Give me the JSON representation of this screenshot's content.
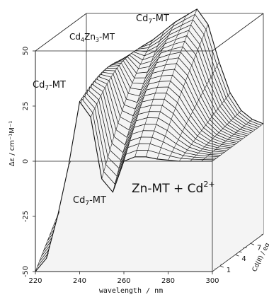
{
  "chart_data": {
    "type": "surface",
    "title": "",
    "xlabel": "wavelength / nm",
    "ylabel": "Δε / cm⁻¹M⁻¹",
    "zlabel": "Cd(II) / eq",
    "xlim": [
      220,
      300
    ],
    "ylim": [
      -50,
      50
    ],
    "x_ticks": [
      "220",
      "240",
      "260",
      "280",
      "300"
    ],
    "y_ticks": [
      "-50",
      "-25",
      "0",
      "25",
      "50"
    ],
    "depth_ticks": [
      "1",
      "4",
      "7"
    ],
    "grid": false,
    "main_label": "Zn-MT + Cd",
    "main_label_sup": "2+",
    "annotations": [
      {
        "text": "Cd",
        "sub": "7",
        "tail": "-MT",
        "near": "front peak"
      },
      {
        "text": "Cd",
        "sub": "7",
        "tail": "-MT",
        "near": "front trough"
      },
      {
        "text": "Cd",
        "sub": "4",
        "mid": "Zn",
        "sub2": "3",
        "tail": "-MT",
        "near": "back shoulder"
      },
      {
        "text": "Cd",
        "sub": "7",
        "tail": "-MT",
        "near": "back peak"
      }
    ],
    "x": [
      220,
      225,
      230,
      235,
      240,
      245,
      250,
      255,
      260,
      265,
      270,
      275,
      280,
      285,
      290,
      295,
      300
    ],
    "front_series": [
      -50,
      -44,
      -25,
      -2,
      27,
      20,
      -8,
      -14,
      0,
      2,
      2,
      1,
      0.5,
      0,
      0,
      0,
      0
    ],
    "back_series": [
      -10,
      -4,
      8,
      20,
      30,
      35,
      38,
      42,
      46,
      49,
      52,
      45,
      28,
      14,
      6,
      2,
      0
    ],
    "n_slices": 26
  }
}
